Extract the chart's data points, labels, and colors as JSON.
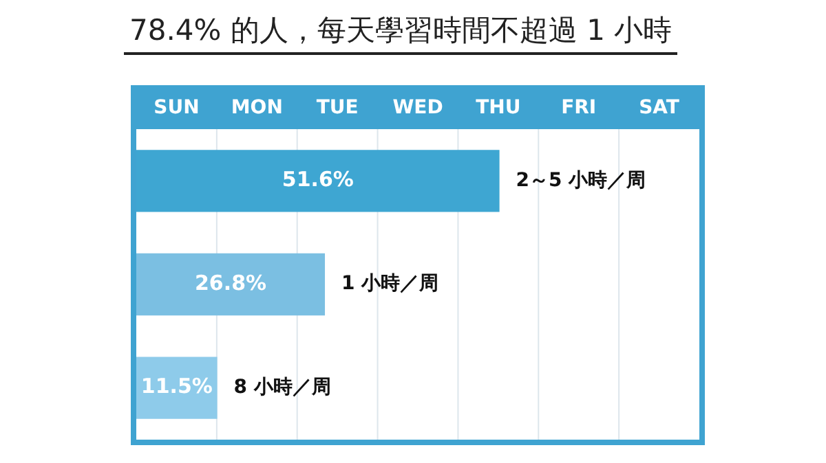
{
  "chart_data": {
    "type": "bar",
    "orientation": "horizontal",
    "title": "78.4% 的人，每天學習時間不超過 1 小時",
    "categories": [
      "2～5 小時／周",
      "1 小時／周",
      "8 小時／周"
    ],
    "values": [
      51.6,
      26.8,
      11.5
    ],
    "value_labels": [
      "51.6%",
      "26.8%",
      "11.5%"
    ],
    "colors": [
      "#3ea6d2",
      "#7bbfe2",
      "#8ecbea"
    ],
    "xlim": [
      0,
      80
    ],
    "tick_labels": false,
    "annotations": [
      "SUN",
      "MON",
      "TUE",
      "WED",
      "THU",
      "FRI",
      "SAT"
    ]
  }
}
